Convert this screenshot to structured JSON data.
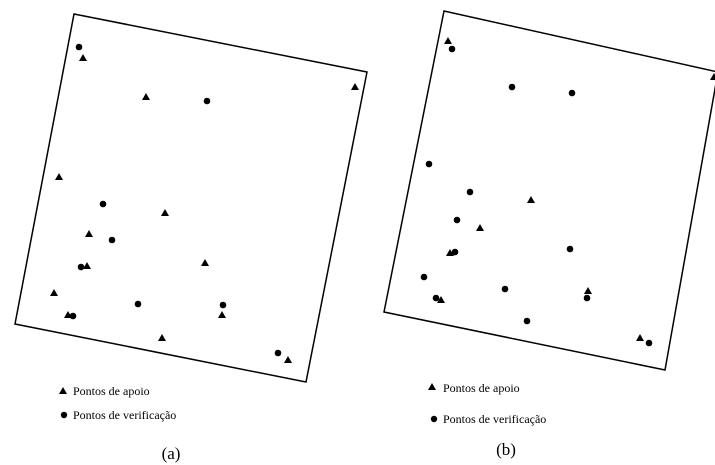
{
  "panels": [
    {
      "caption": "(a)",
      "legend": {
        "triangle_label": "Pontos de apoio",
        "circle_label": "Pontos de verificação"
      }
    },
    {
      "caption": "(b)",
      "legend": {
        "triangle_label": "Pontos de apoio",
        "circle_label": "Pontos de verificação"
      }
    }
  ],
  "colors": {
    "stroke": "#000000",
    "marker": "#000000",
    "background": "#ffffff"
  },
  "icons": {
    "triangle": "triangle-marker-icon",
    "circle": "circle-marker-icon"
  }
}
